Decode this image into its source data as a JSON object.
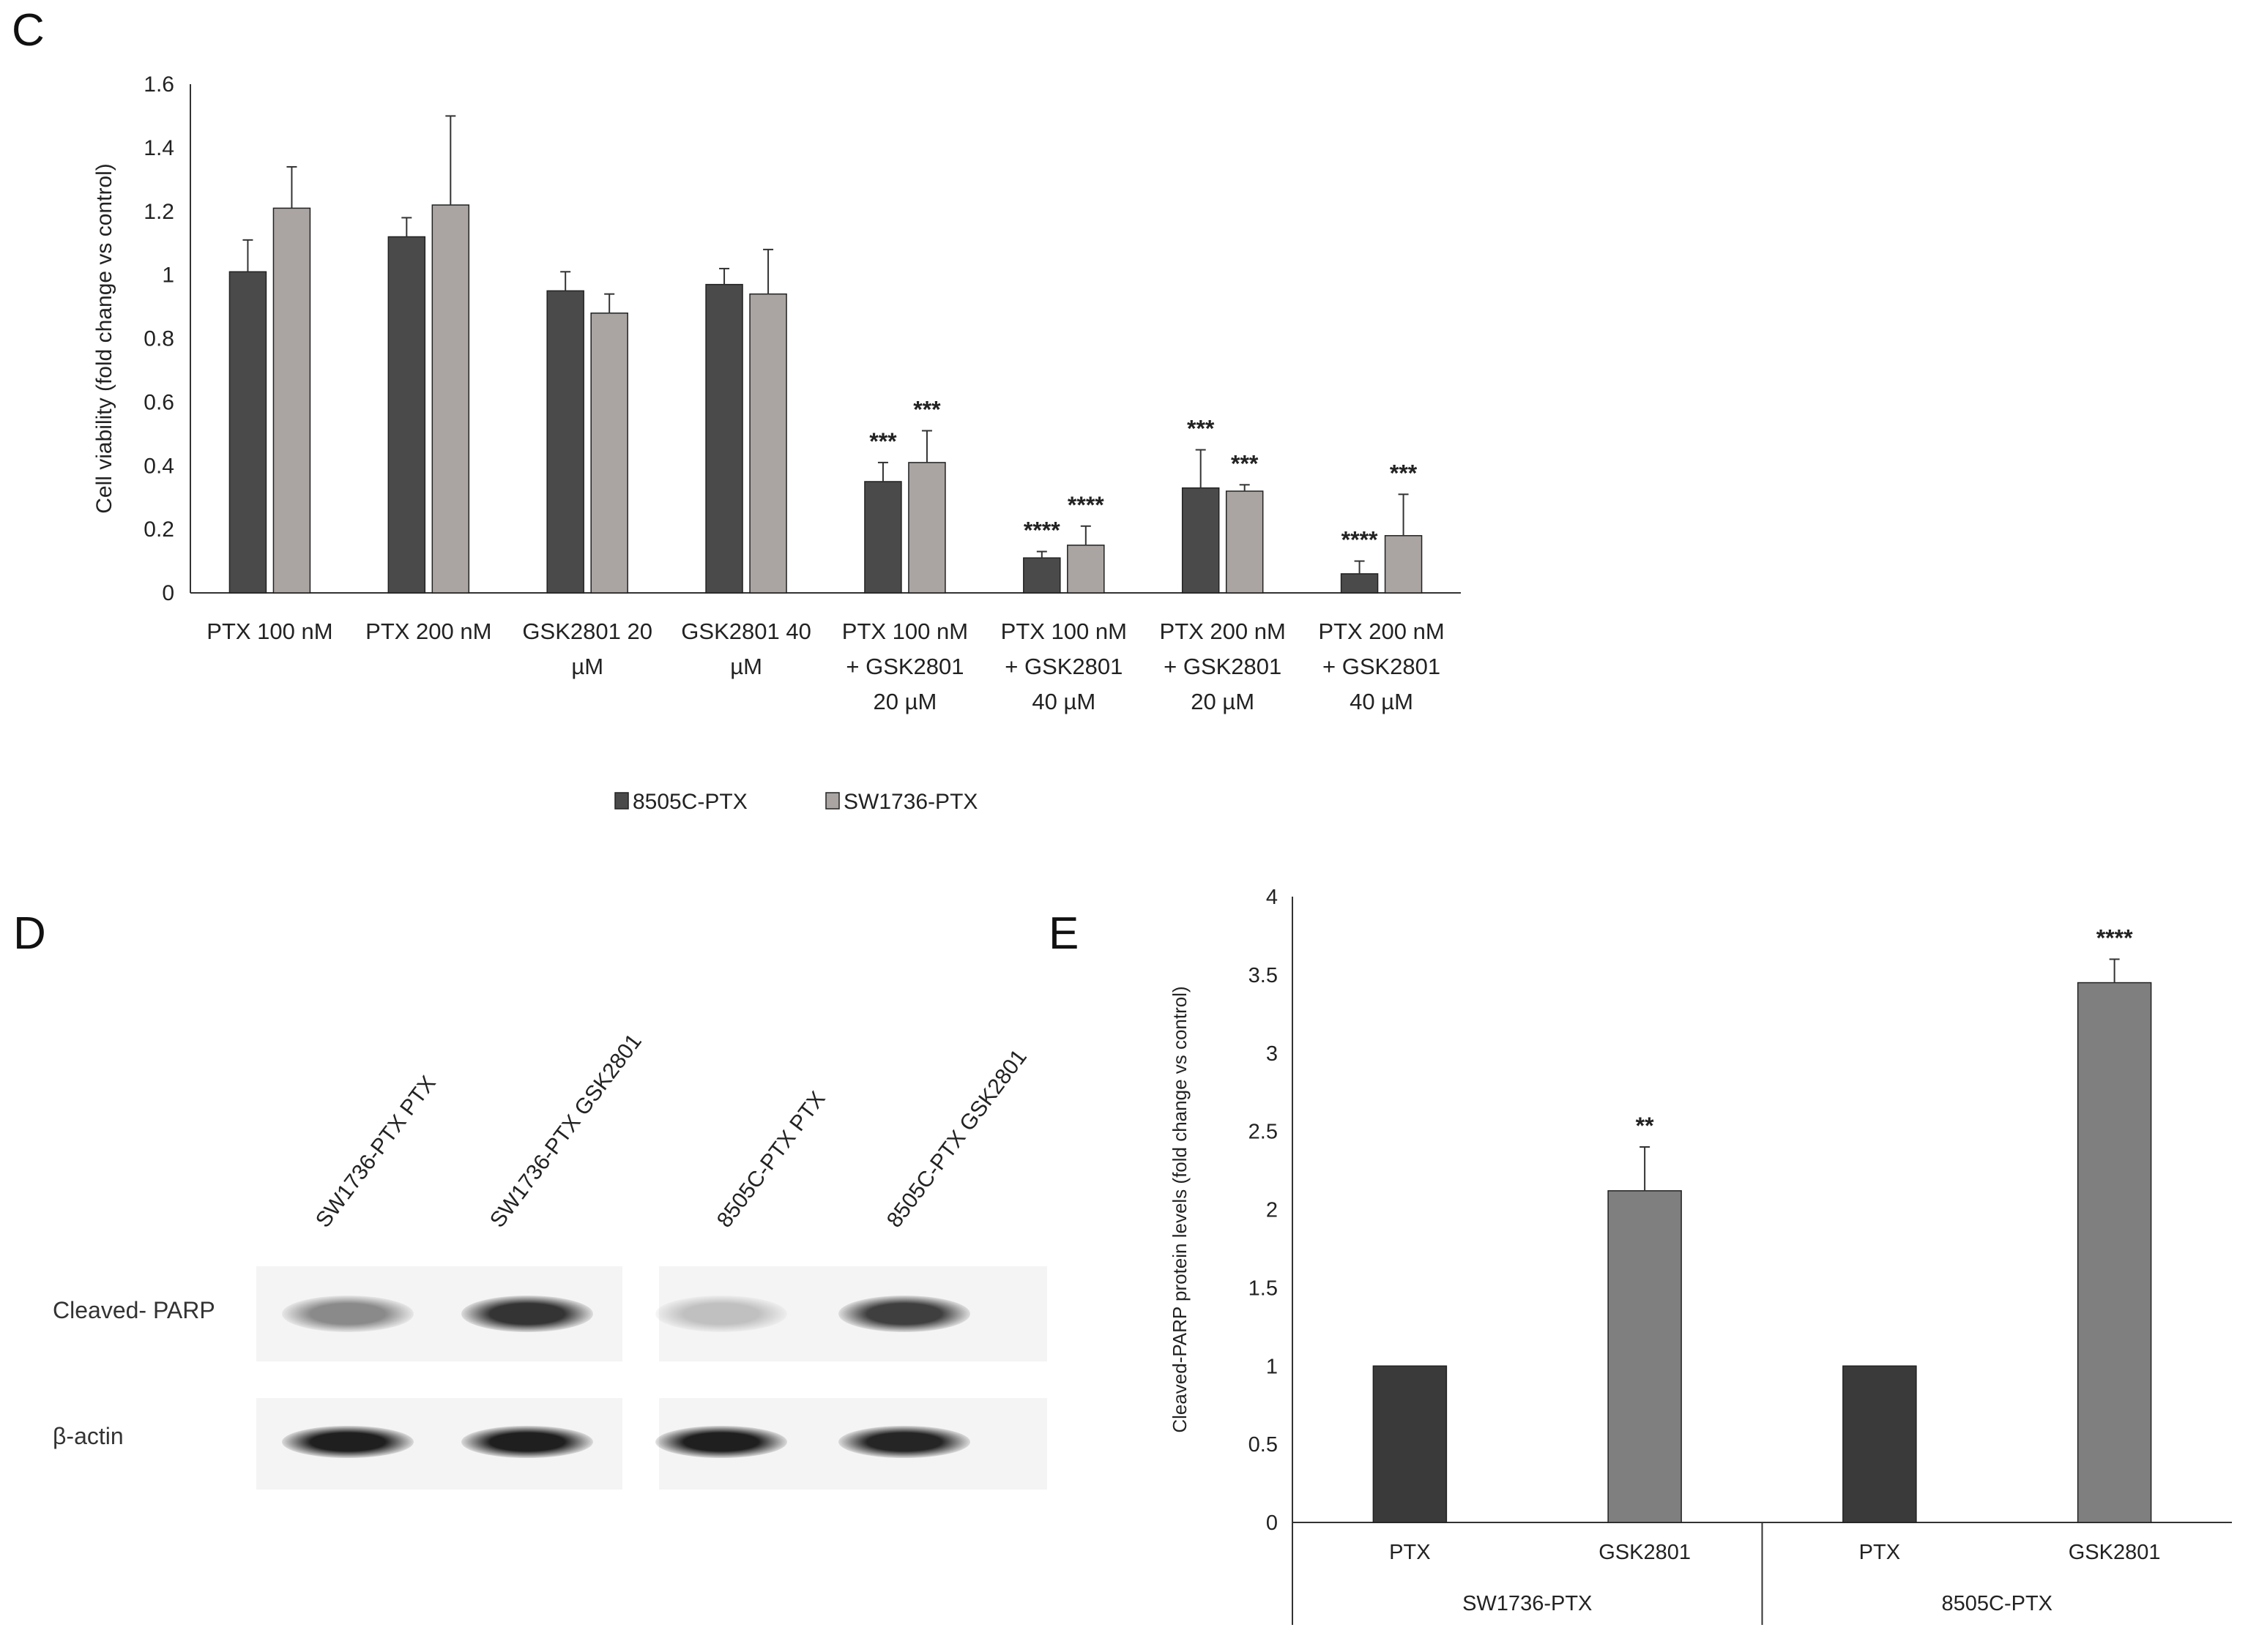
{
  "panels": {
    "c": "C",
    "d": "D",
    "e": "E"
  },
  "chart_data": [
    {
      "panel": "C",
      "type": "bar",
      "ylabel": "Cell viability (fold change vs control)",
      "ylim": [
        0,
        1.6
      ],
      "yticks": [
        "0",
        "0.2",
        "0.4",
        "0.6",
        "0.8",
        "1",
        "1.2",
        "1.4",
        "1.6"
      ],
      "categories": [
        [
          "PTX 100 nM"
        ],
        [
          "PTX 200 nM"
        ],
        [
          "GSK2801 20",
          "µM"
        ],
        [
          "GSK2801 40",
          "µM"
        ],
        [
          "PTX 100 nM",
          "+ GSK2801",
          "20 µM"
        ],
        [
          "PTX 100 nM",
          "+ GSK2801",
          "40 µM"
        ],
        [
          "PTX 200 nM",
          "+ GSK2801",
          "20 µM"
        ],
        [
          "PTX 200 nM",
          "+ GSK2801",
          "40 µM"
        ]
      ],
      "series": [
        {
          "name": "8505C-PTX",
          "color": "#4a4a4a",
          "values": [
            1.01,
            1.12,
            0.95,
            0.97,
            0.35,
            0.11,
            0.33,
            0.06
          ],
          "errors": [
            0.1,
            0.06,
            0.06,
            0.05,
            0.06,
            0.02,
            0.12,
            0.04
          ],
          "sig": [
            "",
            "",
            "",
            "",
            "***",
            "****",
            "***",
            "****"
          ]
        },
        {
          "name": "SW1736-PTX",
          "color": "#aaa5a2",
          "values": [
            1.21,
            1.22,
            0.88,
            0.94,
            0.41,
            0.15,
            0.32,
            0.18
          ],
          "errors": [
            0.13,
            0.28,
            0.06,
            0.14,
            0.1,
            0.06,
            0.02,
            0.13
          ],
          "sig": [
            "",
            "",
            "",
            "",
            "***",
            "****",
            "***",
            "***"
          ]
        }
      ],
      "legend_position": "bottom"
    },
    {
      "panel": "E",
      "type": "bar",
      "ylabel": "Cleaved-PARP protein levels (fold change vs control)",
      "ylim": [
        0,
        4
      ],
      "yticks": [
        "0",
        "0.5",
        "1",
        "1.5",
        "2",
        "2.5",
        "3",
        "3.5",
        "4"
      ],
      "groups": [
        {
          "label": "SW1736-PTX",
          "bars": [
            {
              "label": "PTX",
              "value": 1.0,
              "error": 0,
              "sig": "",
              "color": "#3a3a3a"
            },
            {
              "label": "GSK2801",
              "value": 2.12,
              "error": 0.28,
              "sig": "**",
              "color": "#7f7f7f"
            }
          ]
        },
        {
          "label": "8505C-PTX",
          "bars": [
            {
              "label": "PTX",
              "value": 1.0,
              "error": 0,
              "sig": "",
              "color": "#3a3a3a"
            },
            {
              "label": "GSK2801",
              "value": 3.45,
              "error": 0.15,
              "sig": "****",
              "color": "#7f7f7f"
            }
          ]
        }
      ]
    }
  ],
  "blot": {
    "lanes": [
      "SW1736-PTX PTX",
      "SW1736-PTX GSK2801",
      "8505C-PTX PTX",
      "8505C-PTX GSK2801"
    ],
    "rows": [
      {
        "label": "Cleaved- PARP",
        "intensity": [
          0.45,
          0.85,
          0.2,
          0.8
        ]
      },
      {
        "label": "β-actin",
        "intensity": [
          0.95,
          0.95,
          0.95,
          0.92
        ]
      }
    ]
  }
}
